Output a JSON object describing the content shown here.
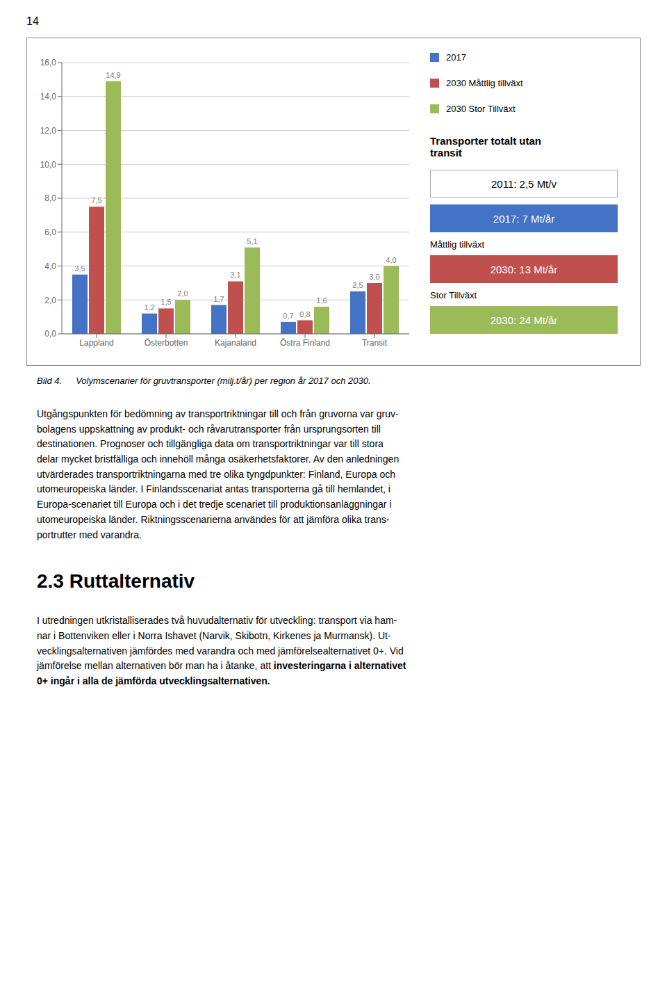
{
  "chart_data": {
    "type": "bar",
    "categories": [
      "Lappland",
      "Österbotten",
      "Kajanaland",
      "Östra Finland",
      "Transit"
    ],
    "series": [
      {
        "name": "2017",
        "color": "#4472C4",
        "values": [
          3.5,
          1.2,
          1.7,
          0.7,
          2.5
        ],
        "value_labels": [
          "3,5",
          "1,2",
          "1,7",
          "0,7",
          "2,5"
        ]
      },
      {
        "name": "2030 Måttlig tillväxt",
        "color": "#C0504D",
        "values": [
          7.5,
          1.5,
          3.1,
          0.8,
          3.0
        ],
        "value_labels": [
          "7,5",
          "1,5",
          "3,1",
          "0,8",
          "3,0"
        ]
      },
      {
        "name": "2030 Stor Tillväxt",
        "color": "#9BBB59",
        "values": [
          14.9,
          2.0,
          5.1,
          1.6,
          4.0
        ],
        "value_labels": [
          "14,9",
          "2,0",
          "5,1",
          "1,6",
          "4,0"
        ]
      }
    ],
    "ylim": [
      0.0,
      16.0
    ],
    "yticks": [
      {
        "value": 0.0,
        "label": "0,0"
      },
      {
        "value": 2.0,
        "label": "2,0"
      },
      {
        "value": 4.0,
        "label": "4,0"
      },
      {
        "value": 6.0,
        "label": "6,0"
      },
      {
        "value": 8.0,
        "label": "8,0"
      },
      {
        "value": 10.0,
        "label": "10,0"
      },
      {
        "value": 12.0,
        "label": "12,0"
      },
      {
        "value": 14.0,
        "label": "14,0"
      },
      {
        "value": 16.0,
        "label": "16,0"
      }
    ],
    "grid": true,
    "data_labels": true,
    "legend": "right",
    "annotation_title": "Transporter totalt utan\ntransit",
    "annotations": [
      {
        "text": "2011: 2,5 Mt/v",
        "color": "#FFFFFF"
      },
      {
        "text": "2017: 7 Mt/år",
        "color": "#4472C4"
      },
      {
        "text": "Måttlig tillväxt"
      },
      {
        "text": "2030: 13 Mt/år",
        "color": "#C0504D"
      },
      {
        "text": "Stor Tillväxt"
      },
      {
        "text": "2030: 24 Mt/år",
        "color": "#9BBB59"
      }
    ]
  },
  "page": {
    "page_number": "14",
    "caption_label": "Bild 4.",
    "caption": "Volymscenarier för gruvtransporter (milj.t/år) per region år 2017 och 2030.",
    "body_text": [
      "Utgångspunkten för bedömning av transportriktningar till och från gruvorna var gruv-",
      "bolagens uppskattning av produkt- och råvarutransporter från ursprungsorten till",
      "destinationen. Prognoser och tillgängliga data om transportriktningar var till stora",
      "delar mycket bristfälliga och innehöll många osäkerhetsfaktorer. Av den anledningen",
      "utvärderades transportriktningarna med tre olika tyngdpunkter: Finland, Europa och",
      "utomeuropeiska länder. I Finlandsscenariat antas transporterna gå till hemlandet, i",
      "Europa-scenariet till Europa och i det tredje scenariet till produktionsanläggningar i",
      "utomeuropeiska länder. Riktningsscenarierna användes för att jämföra olika trans-",
      "portrutter med varandra."
    ],
    "section_title": "2.3  Ruttalternativ",
    "section_text": [
      "I utredningen utkristalliserades två huvudalternativ för utveckling: transport via ham-",
      "nar i Bottenviken eller i Norra Ishavet (Narvik, Skibotn, Kirkenes ja Murmansk). Ut-",
      "vecklingsalternativen jämfördes med varandra och med jämförelsealternativet 0+. Vid",
      "jämförelse mellan alternativen bör man ha i åtanke, att "
    ],
    "section_text_bold": [
      "investeringarna i alternativet",
      "0+ ingår i alla de jämförda utvecklingsalternativen."
    ]
  }
}
